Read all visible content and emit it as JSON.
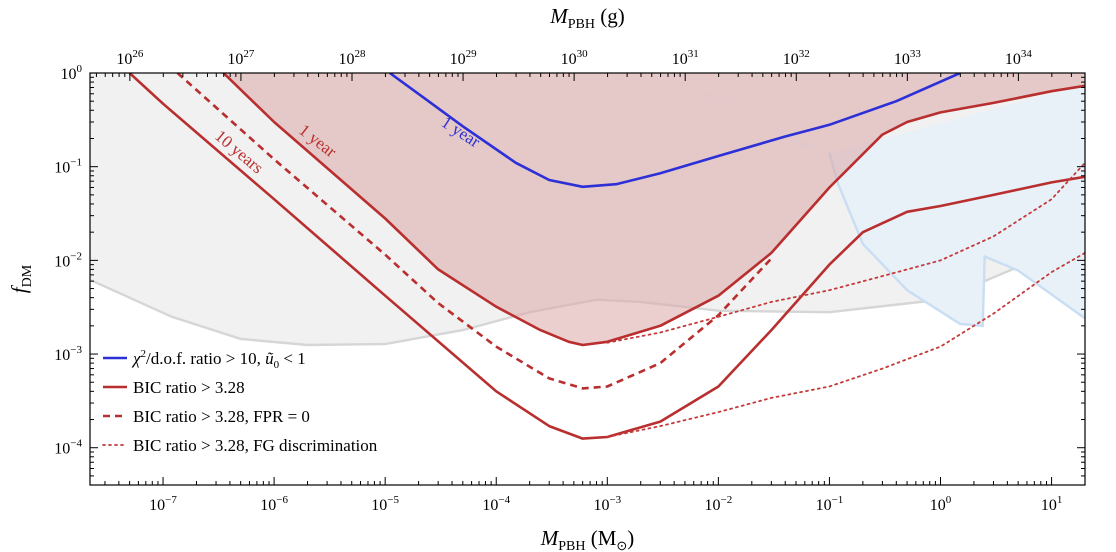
{
  "chart_data": {
    "type": "line",
    "xscale": "log",
    "yscale": "log",
    "x_unit": "solar masses",
    "x_top_unit": "g",
    "xlim": [
      2.2e-08,
      20
    ],
    "ylim": [
      4e-05,
      1
    ],
    "grams_per_solar_mass": 1.989e+33,
    "xlabel": {
      "main": "M",
      "sub": "PBH",
      "unit": "(M",
      "unit_sub": "⊙",
      "close": ")"
    },
    "xlabel_top": {
      "main": "M",
      "sub": "PBH",
      "unit": "(g)"
    },
    "ylabel": {
      "main": "f",
      "sub": "DM"
    },
    "x_ticks": [
      {
        "value": 1e-07,
        "base": "10",
        "exp": "−7"
      },
      {
        "value": 1e-06,
        "base": "10",
        "exp": "−6"
      },
      {
        "value": 1e-05,
        "base": "10",
        "exp": "−5"
      },
      {
        "value": 0.0001,
        "base": "10",
        "exp": "−4"
      },
      {
        "value": 0.001,
        "base": "10",
        "exp": "−3"
      },
      {
        "value": 0.01,
        "base": "10",
        "exp": "−2"
      },
      {
        "value": 0.1,
        "base": "10",
        "exp": "−1"
      },
      {
        "value": 1,
        "base": "10",
        "exp": "0"
      },
      {
        "value": 10,
        "base": "10",
        "exp": "1"
      }
    ],
    "x_top_ticks": [
      {
        "value": 1e+26,
        "base": "10",
        "exp": "26"
      },
      {
        "value": 1e+27,
        "base": "10",
        "exp": "27"
      },
      {
        "value": 1e+28,
        "base": "10",
        "exp": "28"
      },
      {
        "value": 1e+29,
        "base": "10",
        "exp": "29"
      },
      {
        "value": 1e+30,
        "base": "10",
        "exp": "30"
      },
      {
        "value": 1e+31,
        "base": "10",
        "exp": "31"
      },
      {
        "value": 1e+32,
        "base": "10",
        "exp": "32"
      },
      {
        "value": 1e+33,
        "base": "10",
        "exp": "33"
      },
      {
        "value": 1e+34,
        "base": "10",
        "exp": "34"
      }
    ],
    "y_ticks": [
      {
        "value": 1,
        "base": "10",
        "exp": "0"
      },
      {
        "value": 0.1,
        "base": "10",
        "exp": "−1"
      },
      {
        "value": 0.01,
        "base": "10",
        "exp": "−2"
      },
      {
        "value": 0.001,
        "base": "10",
        "exp": "−3"
      },
      {
        "value": 0.0001,
        "base": "10",
        "exp": "−4"
      }
    ],
    "shaded_regions": [
      {
        "id": "gray-constraints",
        "fill": "#f1f1f1",
        "edge_color": "#d6d6d6",
        "upper": [
          [
            2.2e-08,
            1
          ],
          [
            20,
            1
          ]
        ],
        "lower": [
          [
            2.2e-08,
            0.0062
          ],
          [
            1.2e-07,
            0.0025
          ],
          [
            5e-07,
            0.00145
          ],
          [
            2e-06,
            0.00125
          ],
          [
            1e-05,
            0.00128
          ],
          [
            5e-05,
            0.0018
          ],
          [
            0.0002,
            0.0028
          ],
          [
            0.0008,
            0.0038
          ],
          [
            0.002,
            0.0036
          ],
          [
            0.01,
            0.0029
          ],
          [
            0.1,
            0.0028
          ],
          [
            1,
            0.0038
          ],
          [
            5,
            0.0085
          ],
          [
            12,
            0.012
          ],
          [
            20,
            0.011
          ]
        ]
      },
      {
        "id": "light-blue-constraints",
        "fill": "#e8f0f8",
        "edge_color": "#c9def2",
        "upper": [
          [
            0.0028,
            1
          ],
          [
            0.012,
            0.5
          ],
          [
            0.06,
            0.16
          ],
          [
            0.1,
            0.14
          ],
          [
            20,
            0.75
          ]
        ],
        "lower": [
          [
            0.1,
            0.14
          ],
          [
            0.12,
            0.065
          ],
          [
            0.2,
            0.015
          ],
          [
            0.5,
            0.0048
          ],
          [
            1.5,
            0.0021
          ],
          [
            2.4,
            0.002
          ],
          [
            2.5,
            0.011
          ],
          [
            5,
            0.0078
          ],
          [
            20,
            0.0024
          ]
        ]
      },
      {
        "id": "red-one-year-region",
        "fill": "#dcaaab",
        "opacity": 0.58,
        "upper": [
          [
            2.2e-08,
            1
          ],
          [
            20,
            1
          ]
        ],
        "lower_series": "1 year"
      }
    ],
    "series": [
      {
        "name": "χ²/d.o.f. ratio > 10, ũ₀ < 1",
        "color": "#2c30d6",
        "dash": "solid",
        "width": 2.6,
        "points": [
          [
            1.1e-05,
            1
          ],
          [
            2.2e-05,
            0.55
          ],
          [
            5e-05,
            0.27
          ],
          [
            0.00015,
            0.11
          ],
          [
            0.0003,
            0.072
          ],
          [
            0.0006,
            0.061
          ],
          [
            0.0012,
            0.065
          ],
          [
            0.003,
            0.085
          ],
          [
            0.01,
            0.13
          ],
          [
            0.04,
            0.21
          ],
          [
            0.1,
            0.28
          ],
          [
            0.4,
            0.5
          ],
          [
            1.5,
            1
          ]
        ]
      },
      {
        "name": "1 year",
        "color": "#b92e2e",
        "dash": "solid",
        "width": 2.6,
        "points": [
          [
            3.5e-07,
            1
          ],
          [
            1e-06,
            0.3
          ],
          [
            1e-05,
            0.028
          ],
          [
            3e-05,
            0.008
          ],
          [
            0.0001,
            0.0032
          ],
          [
            0.00025,
            0.0018
          ],
          [
            0.00045,
            0.00135
          ],
          [
            0.0006,
            0.00125
          ],
          [
            0.001,
            0.00135
          ],
          [
            0.003,
            0.002
          ],
          [
            0.01,
            0.0042
          ],
          [
            0.03,
            0.012
          ],
          [
            0.1,
            0.06
          ],
          [
            0.3,
            0.22
          ],
          [
            0.5,
            0.3
          ],
          [
            1,
            0.38
          ],
          [
            3,
            0.48
          ],
          [
            10,
            0.64
          ],
          [
            20,
            0.73
          ]
        ]
      },
      {
        "name": "BIC ratio > 3.28, FPR = 0",
        "color": "#b92e2e",
        "dash": "dashed",
        "width": 2.6,
        "points": [
          [
            1.35e-07,
            1
          ],
          [
            1e-06,
            0.12
          ],
          [
            1e-05,
            0.0115
          ],
          [
            3e-05,
            0.0035
          ],
          [
            0.0001,
            0.0012
          ],
          [
            0.0003,
            0.00055
          ],
          [
            0.0006,
            0.00043
          ],
          [
            0.001,
            0.00045
          ],
          [
            0.003,
            0.0008
          ],
          [
            0.01,
            0.0026
          ],
          [
            0.03,
            0.0105
          ]
        ]
      },
      {
        "name": "10 years",
        "color": "#b92e2e",
        "dash": "solid",
        "width": 2.6,
        "points": [
          [
            5e-08,
            1
          ],
          [
            1e-07,
            0.47
          ],
          [
            1e-06,
            0.045
          ],
          [
            1e-05,
            0.0042
          ],
          [
            0.0001,
            0.0004
          ],
          [
            0.0003,
            0.00017
          ],
          [
            0.0006,
            0.000125
          ],
          [
            0.001,
            0.00013
          ],
          [
            0.003,
            0.00019
          ],
          [
            0.01,
            0.00045
          ],
          [
            0.03,
            0.0018
          ],
          [
            0.1,
            0.009
          ],
          [
            0.2,
            0.02
          ],
          [
            0.5,
            0.033
          ],
          [
            1,
            0.038
          ],
          [
            3,
            0.05
          ],
          [
            10,
            0.068
          ],
          [
            20,
            0.078
          ]
        ]
      },
      {
        "name": "FG discrimination, 1 year",
        "color": "#c43a3a",
        "dash": "dotted",
        "width": 1.8,
        "points": [
          [
            0.001,
            0.00132
          ],
          [
            0.003,
            0.0017
          ],
          [
            0.01,
            0.0025
          ],
          [
            0.03,
            0.0036
          ],
          [
            0.1,
            0.0048
          ],
          [
            0.3,
            0.0068
          ],
          [
            1,
            0.01
          ],
          [
            3,
            0.018
          ],
          [
            10,
            0.045
          ],
          [
            20,
            0.11
          ]
        ]
      },
      {
        "name": "FG discrimination, 10 years",
        "color": "#c43a3a",
        "dash": "dotted",
        "width": 1.8,
        "points": [
          [
            0.001,
            0.00013
          ],
          [
            0.003,
            0.00017
          ],
          [
            0.01,
            0.00024
          ],
          [
            0.03,
            0.00034
          ],
          [
            0.1,
            0.00045
          ],
          [
            0.3,
            0.0007
          ],
          [
            1,
            0.0012
          ],
          [
            3,
            0.0027
          ],
          [
            10,
            0.0075
          ],
          [
            20,
            0.012
          ]
        ]
      }
    ],
    "curve_labels": [
      {
        "text": "1 year",
        "color": "#2c30d6",
        "x": 4.5e-05,
        "y": 0.21,
        "angle": 33
      },
      {
        "text": "1 year",
        "color": "#b92e2e",
        "x": 2.3e-06,
        "y": 0.17,
        "angle": 38
      },
      {
        "text": "10 years",
        "color": "#b92e2e",
        "x": 4.5e-07,
        "y": 0.13,
        "angle": 40
      }
    ],
    "legend": {
      "position": "bottom-left",
      "entries": [
        {
          "parts": [
            "χ",
            "2",
            "/d.o.f. ratio > 10, ",
            "ũ",
            "0",
            " < 1"
          ],
          "color": "#2c30d6",
          "dash": "solid"
        },
        {
          "parts": [
            "BIC ratio > 3.28"
          ],
          "color": "#b92e2e",
          "dash": "solid"
        },
        {
          "parts": [
            "BIC ratio > 3.28, FPR = 0"
          ],
          "color": "#b92e2e",
          "dash": "dashed"
        },
        {
          "parts": [
            "BIC ratio > 3.28, FG discrimination"
          ],
          "color": "#c43a3a",
          "dash": "dotted"
        }
      ]
    }
  }
}
